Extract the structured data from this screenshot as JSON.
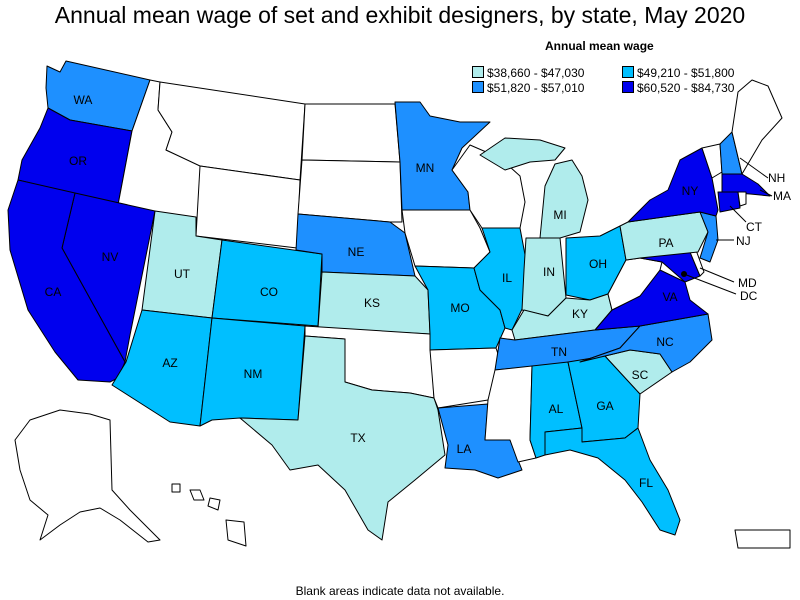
{
  "title": "Annual mean wage of set and exhibit designers, by state, May 2020",
  "legend": {
    "title": "Annual mean wage",
    "items": [
      {
        "label": "$38,660 - $47,030",
        "color": "#b0ecec"
      },
      {
        "label": "$49,210 - $51,800",
        "color": "#00bfff"
      },
      {
        "label": "$51,820 - $57,010",
        "color": "#1e90ff"
      },
      {
        "label": "$60,520 - $84,730",
        "color": "#0000ee"
      }
    ]
  },
  "colors": {
    "no_data": "#ffffff",
    "border": "#000000"
  },
  "states": {
    "WA": {
      "label": "WA",
      "class": 3
    },
    "OR": {
      "label": "OR",
      "class": 4
    },
    "CA": {
      "label": "CA",
      "class": 4
    },
    "NV": {
      "label": "NV",
      "class": 4
    },
    "UT": {
      "label": "UT",
      "class": 1
    },
    "AZ": {
      "label": "AZ",
      "class": 2
    },
    "CO": {
      "label": "CO",
      "class": 2
    },
    "NM": {
      "label": "NM",
      "class": 2
    },
    "TX": {
      "label": "TX",
      "class": 1
    },
    "NE": {
      "label": "NE",
      "class": 3
    },
    "KS": {
      "label": "KS",
      "class": 1
    },
    "MN": {
      "label": "MN",
      "class": 3
    },
    "MO": {
      "label": "MO",
      "class": 2
    },
    "LA": {
      "label": "LA",
      "class": 3
    },
    "IL": {
      "label": "IL",
      "class": 2
    },
    "IN": {
      "label": "IN",
      "class": 1
    },
    "MI": {
      "label": "MI",
      "class": 1
    },
    "OH": {
      "label": "OH",
      "class": 2
    },
    "KY": {
      "label": "KY",
      "class": 1
    },
    "TN": {
      "label": "TN",
      "class": 3
    },
    "AL": {
      "label": "AL",
      "class": 2
    },
    "GA": {
      "label": "GA",
      "class": 2
    },
    "FL": {
      "label": "FL",
      "class": 2
    },
    "SC": {
      "label": "SC",
      "class": 1
    },
    "NC": {
      "label": "NC",
      "class": 3
    },
    "VA": {
      "label": "VA",
      "class": 4
    },
    "PA": {
      "label": "PA",
      "class": 1
    },
    "NY": {
      "label": "NY",
      "class": 4
    },
    "NJ": {
      "label": "NJ",
      "class": 3
    },
    "MD": {
      "label": "MD",
      "class": 4
    },
    "DC": {
      "label": "DC",
      "class": 4
    },
    "CT": {
      "label": "CT",
      "class": 4
    },
    "MA": {
      "label": "MA",
      "class": 4
    },
    "NH": {
      "label": "NH",
      "class": 3
    }
  },
  "footnote": "Blank areas indicate data not available."
}
